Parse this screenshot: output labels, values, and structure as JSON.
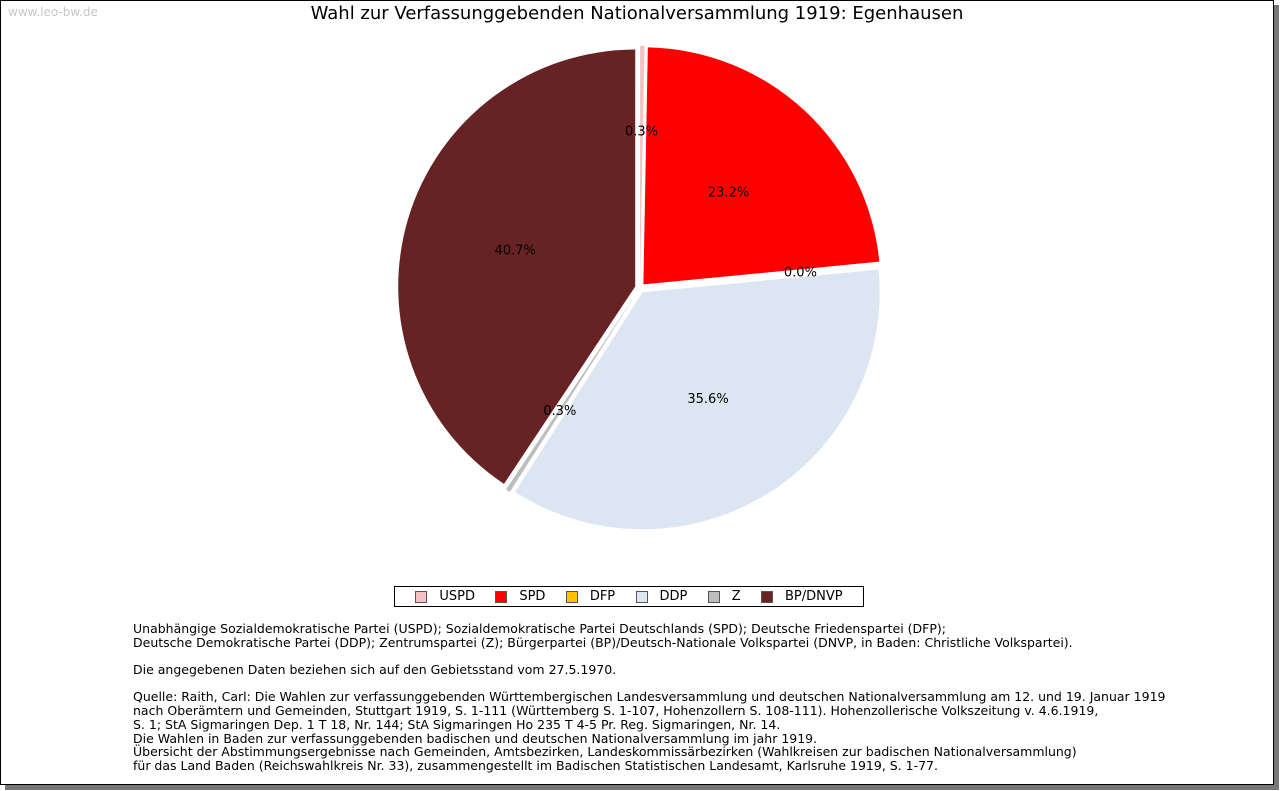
{
  "watermark": "www.leo-bw.de",
  "chart_data": {
    "type": "pie",
    "title": "Wahl zur Verfassunggebenden Nationalversammlung 1919: Egenhausen",
    "slices": [
      {
        "name": "USPD",
        "value": 0.3,
        "label": "0.3%",
        "color": "#F4C2C2"
      },
      {
        "name": "SPD",
        "value": 23.2,
        "label": "23.2%",
        "color": "#FF0000"
      },
      {
        "name": "DFP",
        "value": 0.0,
        "label": "0.0%",
        "color": "#FFC000"
      },
      {
        "name": "DDP",
        "value": 35.6,
        "label": "35.6%",
        "color": "#DCE6F2"
      },
      {
        "name": "Z",
        "value": 0.3,
        "label": "0.3%",
        "color": "#BDBDBD"
      },
      {
        "name": "BP/DNVP",
        "value": 40.7,
        "label": "40.7%",
        "color": "#672324"
      }
    ],
    "legend_position": "bottom-center"
  },
  "notes": {
    "parties": [
      "Unabhängige Sozialdemokratische Partei (USPD); Sozialdemokratische Partei Deutschlands (SPD); Deutsche Friedenspartei (DFP);",
      "Deutsche Demokratische Partei (DDP); Zentrumspartei (Z); Bürgerpartei (BP)/Deutsch-Nationale Volkspartei (DNVP, in Baden: Christliche Volkspartei)."
    ],
    "territory": "Die angegebenen Daten beziehen sich auf den Gebietsstand vom 27.5.1970.",
    "source": [
      "Quelle: Raith, Carl: Die Wahlen zur verfassunggebenden Württembergischen Landesversammlung und deutschen Nationalversammlung am 12. und 19. Januar 1919",
      "nach Oberämtern und Gemeinden, Stuttgart 1919, S. 1-111 (Württemberg S. 1-107, Hohenzollern S. 108-111). Hohenzollerische Volkszeitung v. 4.6.1919,",
      "S. 1; StA Sigmaringen Dep. 1 T 18, Nr. 144; StA Sigmaringen Ho 235 T 4-5 Pr. Reg. Sigmaringen, Nr. 14.",
      "Die Wahlen in Baden zur verfassunggebenden badischen und deutschen Nationalversammlung im jahr 1919.",
      "Übersicht der Abstimmungsergebnisse nach Gemeinden, Amtsbezirken, Landeskommissärbezirken (Wahlkreisen zur badischen Nationalversammlung)",
      "für das Land Baden (Reichswahlkreis Nr. 33), zusammengestellt im Badischen Statistischen Landesamt, Karlsruhe 1919, S. 1-77."
    ]
  }
}
